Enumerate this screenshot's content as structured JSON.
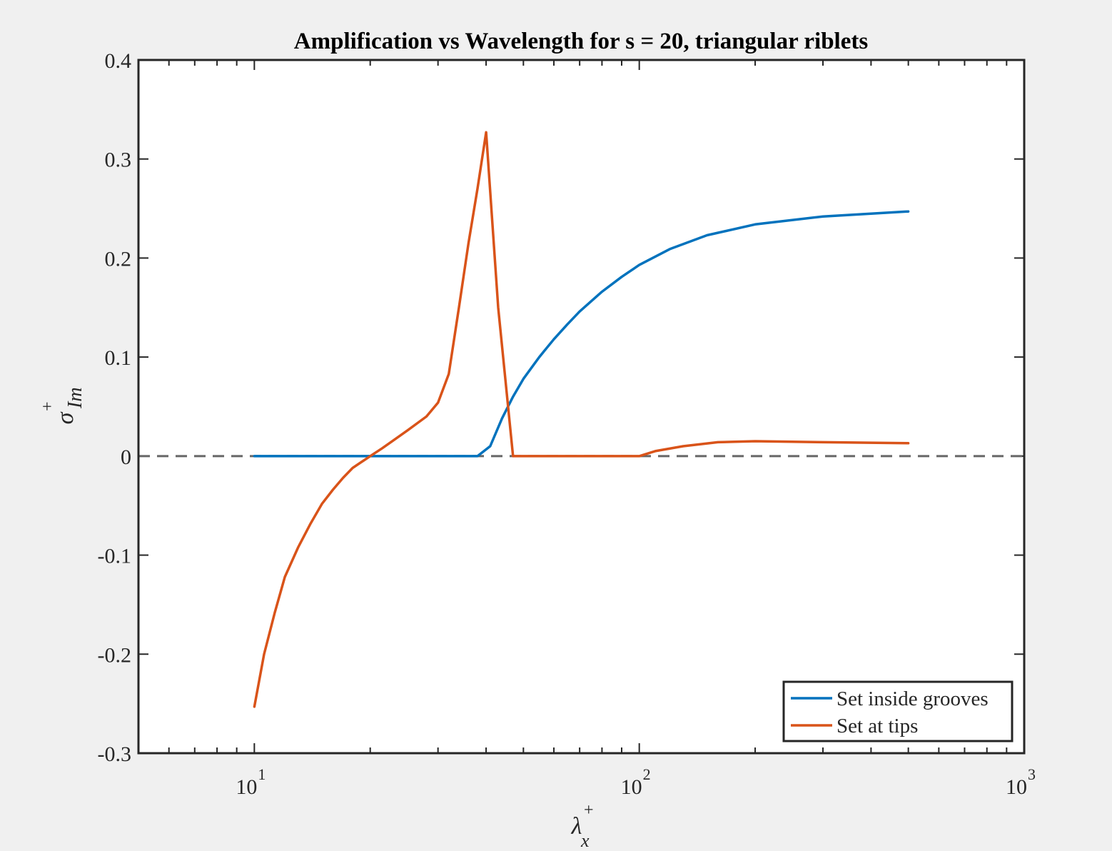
{
  "chart_data": {
    "type": "line",
    "title": "Amplification vs Wavelength for s = 20, triangular riblets",
    "xlabel": {
      "base": "λ",
      "sup": "+",
      "sub": "x"
    },
    "ylabel": {
      "base": "σ",
      "sup": "+",
      "sub": "Im"
    },
    "xscale": "log",
    "xlim": [
      5,
      1000
    ],
    "ylim": [
      -0.3,
      0.4
    ],
    "yticks": [
      -0.3,
      -0.2,
      -0.1,
      0,
      0.1,
      0.2,
      0.3,
      0.4
    ],
    "ytick_labels": [
      "-0.3",
      "-0.2",
      "-0.1",
      "0",
      "0.1",
      "0.2",
      "0.3",
      "0.4"
    ],
    "xticks": [
      {
        "value": 10,
        "base": "10",
        "exp": "1"
      },
      {
        "value": 100,
        "base": "10",
        "exp": "2"
      },
      {
        "value": 1000,
        "base": "10",
        "exp": "3"
      }
    ],
    "grid": false,
    "legend_position": "bottom-right",
    "reference_line": {
      "y": 0,
      "style": "dashed",
      "color": "#666666"
    },
    "series": [
      {
        "name": "Set inside grooves",
        "color": "#0072BD",
        "x": [
          10,
          20,
          30,
          38,
          41,
          44,
          47,
          50,
          55,
          60,
          65,
          70,
          80,
          90,
          100,
          120,
          150,
          200,
          300,
          500
        ],
        "y": [
          0,
          0,
          0,
          0,
          0.01,
          0.038,
          0.06,
          0.078,
          0.1,
          0.118,
          0.133,
          0.146,
          0.166,
          0.181,
          0.193,
          0.209,
          0.223,
          0.234,
          0.242,
          0.247
        ]
      },
      {
        "name": "Set at tips",
        "color": "#D95319",
        "x": [
          10,
          10.6,
          11.3,
          12,
          13,
          14,
          15,
          16,
          17,
          18,
          20,
          21.5,
          23,
          25,
          28,
          30,
          32,
          34,
          36,
          38,
          40,
          43,
          47,
          48,
          55,
          70,
          100,
          110,
          130,
          160,
          200,
          300,
          500
        ],
        "y": [
          -0.253,
          -0.2,
          -0.158,
          -0.122,
          -0.092,
          -0.068,
          -0.048,
          -0.034,
          -0.022,
          -0.012,
          0,
          0.008,
          0.016,
          0.026,
          0.04,
          0.054,
          0.083,
          0.15,
          0.215,
          0.27,
          0.327,
          0.15,
          0,
          0,
          0,
          0,
          0,
          0.005,
          0.01,
          0.014,
          0.015,
          0.014,
          0.013
        ]
      }
    ]
  }
}
